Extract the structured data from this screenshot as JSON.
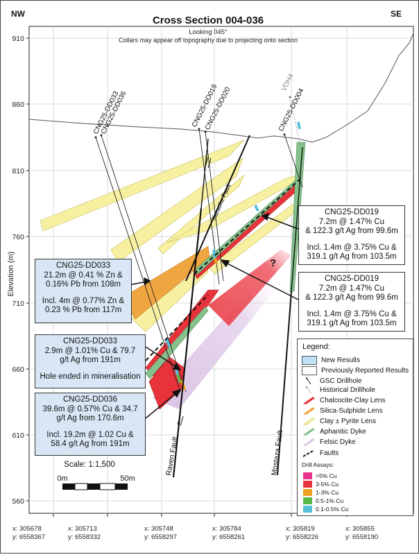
{
  "title": "Cross Section 004-036",
  "subtitle": "Looking 045°",
  "note": "Collars may appear off topography due to projecting onto section",
  "dir_left": "NW",
  "dir_right": "SE",
  "y_axis_label": "Elevation (m)",
  "elevation_ticks": [
    "910",
    "860",
    "810",
    "760",
    "710",
    "660",
    "610",
    "560"
  ],
  "drillholes": {
    "dd033": "CNG25-DD033",
    "dd036": "CNG25-DD036",
    "dd019": "CNG25-DD019",
    "dd020": "CNG25-DD020",
    "dd004": "CNG25-DD004",
    "vdh4": "VDH4"
  },
  "faults": {
    "karaoke": "Karaoke Fault",
    "raven": "Raven Fault",
    "mostaza": "Mostaza Fault"
  },
  "question_mark": "?",
  "callouts": {
    "dd033_zn": {
      "hole": "CNG25-DD033",
      "l1": "21.2m @ 0.41 % Zn &",
      "l2": "0.16% Pb from 108m",
      "l3": "Incl. 4m @ 0.77% Zn &",
      "l4": "0.23 % Pb from 117m"
    },
    "dd033_cu": {
      "hole": "CNG25-DD033",
      "l1": "2.9m @ 1.01% Cu & 79.7",
      "l2": "g/t Ag from 191m",
      "l3": "Hole ended in mineralisation"
    },
    "dd036": {
      "hole": "CNG25-DD036",
      "l1": "39.6m @ 0.57% Cu & 34.7",
      "l2": "g/t Ag from 170.6m",
      "l3": "Incl. 19.2m @ 1.02 Cu &",
      "l4": "58.4 g/t Ag from 191m"
    },
    "dd019_a": {
      "hole": "CNG25-DD019",
      "l1": "7.2m @ 1.47% Cu",
      "l2": "& 122.3 g/t Ag from 99.6m",
      "l3": "Incl. 1.4m @ 3.75% Cu &",
      "l4": "319.1 g/t Ag from 103.5m"
    },
    "dd019_b": {
      "hole": "CNG25-DD019",
      "l1": "7.2m @ 1.47% Cu",
      "l2": "& 122.3 g/t Ag from 99.6m",
      "l3": "Incl. 1.4m @ 3.75% Cu &",
      "l4": "319.1 g/t Ag from 103.5m"
    }
  },
  "scale": {
    "label": "Scale: 1:1,500",
    "left": "0m",
    "right": "50m"
  },
  "legend": {
    "title": "Legend:",
    "items": [
      {
        "label": "New Results",
        "symbol": "new-results-box",
        "color": "#bfe0f5"
      },
      {
        "label": "Previously Reported Results",
        "symbol": "previous-results-box",
        "color": "#ffffff"
      },
      {
        "label": "GSC Drillhole",
        "symbol": "gsc-drillhole-line"
      },
      {
        "label": "Historical Drillhole",
        "symbol": "historical-drillhole-line"
      },
      {
        "label": "Chalcocite-Clay Lens",
        "symbol": "chalcocite-lens",
        "color": "#e8333a"
      },
      {
        "label": "Silica-Sulphide Lens",
        "symbol": "silica-lens",
        "color": "#f0a640"
      },
      {
        "label": "Clay ± Pyrite Lens",
        "symbol": "clay-lens",
        "color": "#f6f0a0"
      },
      {
        "label": "Aphanitic Dyke",
        "symbol": "aphanitic-dyke",
        "color": "#86c08c"
      },
      {
        "label": "Felsic Dyke",
        "symbol": "felsic-dyke",
        "color": "#dcc6e6"
      },
      {
        "label": "Faults",
        "symbol": "faults-line"
      }
    ],
    "assay_title": "Drill Assays:",
    "assays": [
      {
        "label": ">5% Cu",
        "color": "#e8338a"
      },
      {
        "label": "3-5% Cu",
        "color": "#e8333a"
      },
      {
        "label": "1-3% Cu",
        "color": "#f0a020"
      },
      {
        "label": "0.5-1% Cu",
        "color": "#58b848"
      },
      {
        "label": "0.1-0.5% Cu",
        "color": "#58c0d8"
      }
    ]
  },
  "coords": [
    {
      "x": "x: 305678",
      "y": "y: 6558367"
    },
    {
      "x": "x: 305713",
      "y": "y: 6558332"
    },
    {
      "x": "x: 305748",
      "y": "y: 6558297"
    },
    {
      "x": "x: 305784",
      "y": "y: 6558261"
    },
    {
      "x": "x: 305819",
      "y": "y: 6558226"
    },
    {
      "x": "x: 305855",
      "y": "y: 6558190"
    }
  ]
}
